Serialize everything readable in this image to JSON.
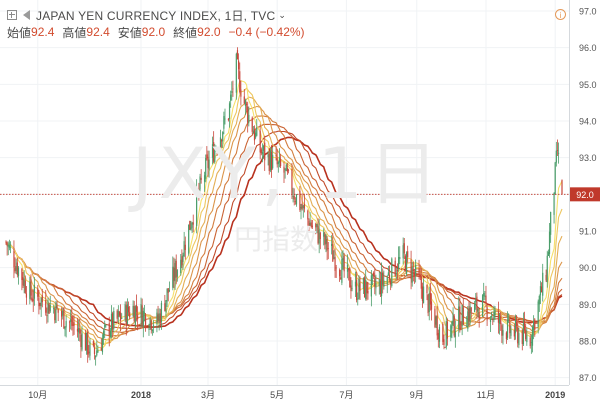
{
  "header": {
    "title": "JAPAN YEN CURRENCY INDEX, 1日, TVC",
    "open_label": "始値",
    "open_value": "92.4",
    "high_label": "高値",
    "high_value": "92.4",
    "low_label": "安値",
    "low_value": "92.0",
    "close_label": "終値",
    "close_value": "92.0",
    "change": "−0.4 (−0.42%)"
  },
  "watermark": {
    "symbol": "JXY, 1日",
    "name": "円指数"
  },
  "icons": [
    "expand-icon",
    "flag-icon",
    "chevron-down-icon",
    "info-icon"
  ],
  "colors": {
    "up": "#4a9d6a",
    "down": "#c9463a",
    "last_price": "#c0392b",
    "ribbon_fast": "#f6e06a",
    "ribbon_slow": "#b8321f"
  },
  "chart_data": {
    "type": "candlestick",
    "ylim": [
      86.8,
      97.3
    ],
    "y_ticks": [
      "97.0",
      "96.0",
      "95.0",
      "94.0",
      "93.0",
      "92.0",
      "91.0",
      "90.0",
      "89.0",
      "88.0",
      "87.0"
    ],
    "x_labels": [
      "10月",
      "2018",
      "3月",
      "5月",
      "7月",
      "9月",
      "11月",
      "2019"
    ],
    "last_price": "92.0",
    "price_path": [
      [
        "2017-09-04",
        90.7
      ],
      [
        "2017-09-25",
        89.3
      ],
      [
        "2017-10-16",
        88.9
      ],
      [
        "2017-11-06",
        88.3
      ],
      [
        "2017-11-20",
        87.6
      ],
      [
        "2017-12-04",
        88.4
      ],
      [
        "2017-12-25",
        88.9
      ],
      [
        "2018-01-15",
        88.5
      ],
      [
        "2018-02-05",
        90.3
      ],
      [
        "2018-02-26",
        92.6
      ],
      [
        "2018-03-19",
        94.2
      ],
      [
        "2018-03-26",
        95.5
      ],
      [
        "2018-04-02",
        94.5
      ],
      [
        "2018-04-16",
        93.2
      ],
      [
        "2018-05-07",
        92.6
      ],
      [
        "2018-05-28",
        91.3
      ],
      [
        "2018-06-18",
        90.4
      ],
      [
        "2018-07-09",
        89.4
      ],
      [
        "2018-07-30",
        89.5
      ],
      [
        "2018-08-20",
        90.3
      ],
      [
        "2018-09-03",
        89.6
      ],
      [
        "2018-09-24",
        88.1
      ],
      [
        "2018-10-08",
        88.6
      ],
      [
        "2018-10-29",
        89.0
      ],
      [
        "2018-11-19",
        88.3
      ],
      [
        "2018-12-10",
        88.1
      ],
      [
        "2018-12-24",
        89.9
      ],
      [
        "2019-01-03",
        93.2
      ],
      [
        "2019-01-07",
        92.0
      ]
    ],
    "ribbon": {
      "count": 8,
      "spans": [
        8,
        12,
        17,
        23,
        30,
        38,
        47,
        56
      ]
    }
  }
}
